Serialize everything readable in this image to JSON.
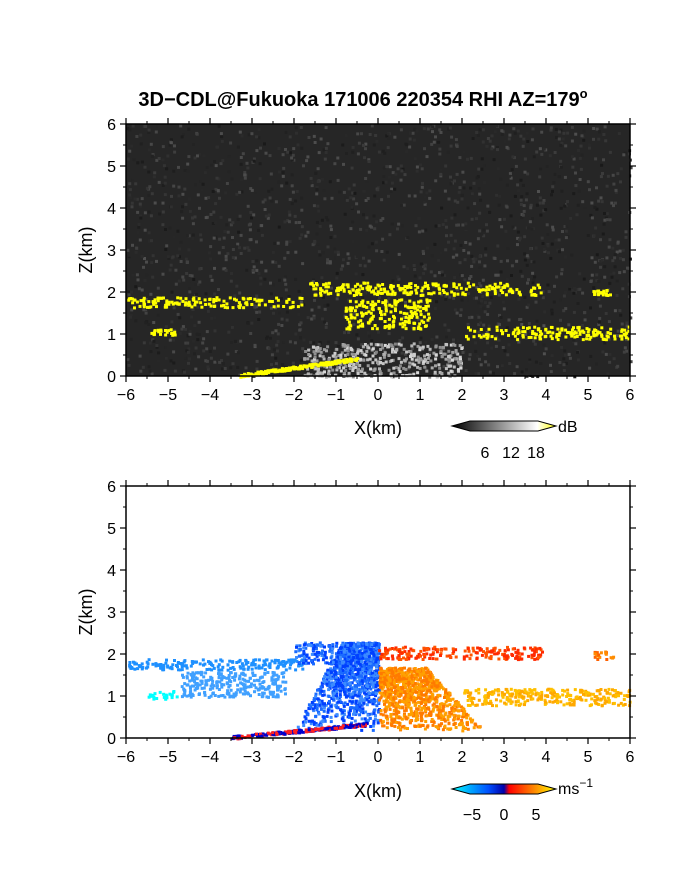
{
  "title_main": "3D−CDL@Fukuoka 171006 220354 RHI AZ=179",
  "title_sup": "o",
  "chart_data": [
    {
      "type": "heatmap",
      "variable": "reflectivity",
      "xlabel": "X(km)",
      "ylabel": "Z(km)",
      "xlim": [
        -6,
        6
      ],
      "ylim": [
        0,
        6
      ],
      "xticks": [
        "−6",
        "−5",
        "−4",
        "−3",
        "−2",
        "−1",
        "0",
        "1",
        "2",
        "3",
        "4",
        "5",
        "6"
      ],
      "yticks": [
        "0",
        "1",
        "2",
        "3",
        "4",
        "5",
        "6"
      ],
      "background": "#262626",
      "colorbar": {
        "unit": "dB",
        "ticks": [
          "6",
          "12",
          "18"
        ],
        "range": [
          0,
          20
        ],
        "colors": [
          "#000000",
          "#ffffff",
          "#ffff00"
        ]
      },
      "features": [
        {
          "kind": "ground_clutter",
          "x": [
            -1.8,
            2.0
          ],
          "z": [
            0.0,
            0.8
          ],
          "level_db": 12,
          "color": "#b0b0b0"
        },
        {
          "kind": "cloud_layer",
          "x": [
            -6.0,
            -1.8
          ],
          "z": [
            1.65,
            1.9
          ],
          "level_db": 18,
          "color": "#ffff00"
        },
        {
          "kind": "cloud_layer",
          "x": [
            -1.7,
            3.9
          ],
          "z": [
            1.95,
            2.25
          ],
          "level_db": 18,
          "color": "#ffff00"
        },
        {
          "kind": "cloud_layer",
          "x": [
            5.1,
            5.5
          ],
          "z": [
            1.95,
            2.1
          ],
          "level_db": 18,
          "color": "#ffff00"
        },
        {
          "kind": "cloud_layer",
          "x": [
            -5.5,
            -4.8
          ],
          "z": [
            1.0,
            1.15
          ],
          "level_db": 18,
          "color": "#ffff00"
        },
        {
          "kind": "cloud_layer",
          "x": [
            2.0,
            6.0
          ],
          "z": [
            0.9,
            1.2
          ],
          "level_db": 18,
          "color": "#ffff00"
        },
        {
          "kind": "cloud_layer",
          "x": [
            -0.8,
            1.2
          ],
          "z": [
            1.15,
            1.85
          ],
          "level_db": 18,
          "color": "#ffff00"
        },
        {
          "kind": "near_ground",
          "x": [
            -3.3,
            -0.5
          ],
          "z": [
            0.0,
            0.5
          ],
          "level_db": 18,
          "color": "#ffff00"
        }
      ]
    },
    {
      "type": "heatmap",
      "variable": "doppler_velocity",
      "xlabel": "X(km)",
      "ylabel": "Z(km)",
      "xlim": [
        -6,
        6
      ],
      "ylim": [
        0,
        6
      ],
      "xticks": [
        "−6",
        "−5",
        "−4",
        "−3",
        "−2",
        "−1",
        "0",
        "1",
        "2",
        "3",
        "4",
        "5",
        "6"
      ],
      "yticks": [
        "0",
        "1",
        "2",
        "3",
        "4",
        "5",
        "6"
      ],
      "background": "#ffffff",
      "colorbar": {
        "unit": "ms",
        "unit_sup": "−1",
        "ticks": [
          "−5",
          "0",
          "5"
        ],
        "range": [
          -7,
          7
        ],
        "colors": [
          "#00ffff",
          "#0050ff",
          "#ff0000",
          "#ffff00"
        ]
      },
      "features": [
        {
          "kind": "layer",
          "x": [
            -6.0,
            -1.8
          ],
          "z": [
            1.65,
            1.9
          ],
          "velocity": -6
        },
        {
          "kind": "layer",
          "x": [
            -5.5,
            -4.8
          ],
          "z": [
            0.95,
            1.15
          ],
          "velocity": -7
        },
        {
          "kind": "layer",
          "x": [
            -4.7,
            -2.2
          ],
          "z": [
            1.0,
            1.6
          ],
          "velocity": -5
        },
        {
          "kind": "core_left",
          "x": [
            -2.0,
            0.0
          ],
          "z": [
            0.2,
            2.3
          ],
          "velocity": -3
        },
        {
          "kind": "core_right",
          "x": [
            0.0,
            2.5
          ],
          "z": [
            0.2,
            1.7
          ],
          "velocity": 3
        },
        {
          "kind": "layer_top",
          "x": [
            -2.0,
            0.0
          ],
          "z": [
            1.8,
            2.3
          ],
          "velocity": -3
        },
        {
          "kind": "layer_top",
          "x": [
            0.0,
            3.9
          ],
          "z": [
            1.9,
            2.2
          ],
          "velocity": 2
        },
        {
          "kind": "layer",
          "x": [
            2.0,
            6.0
          ],
          "z": [
            0.8,
            1.2
          ],
          "velocity": 5
        },
        {
          "kind": "layer",
          "x": [
            5.1,
            5.6
          ],
          "z": [
            1.9,
            2.1
          ],
          "velocity": 4
        },
        {
          "kind": "near_ground",
          "x": [
            -3.5,
            -0.3
          ],
          "z": [
            0.0,
            0.45
          ],
          "velocity": 0
        }
      ]
    }
  ]
}
